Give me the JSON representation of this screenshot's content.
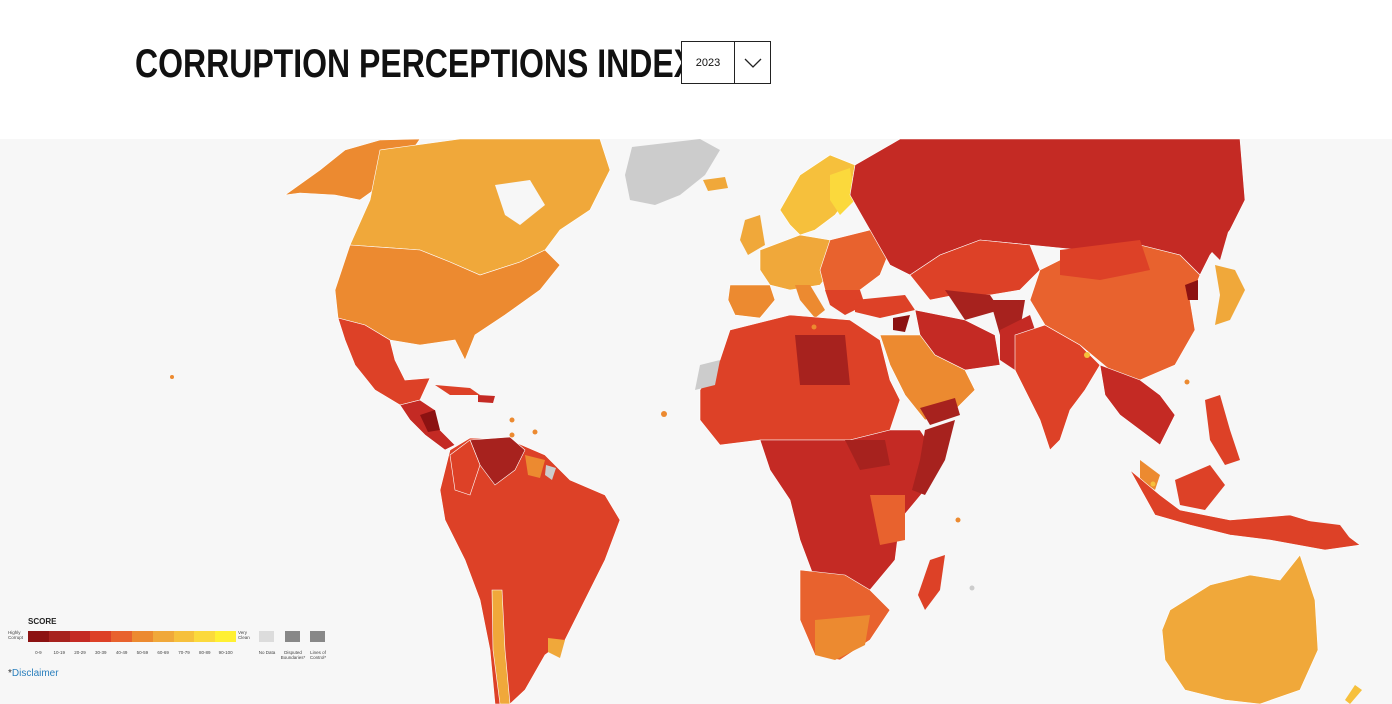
{
  "header": {
    "title": "CORRUPTION PERCEPTIONS INDEX"
  },
  "year_select": {
    "value": "2023",
    "icon": "chevron-down-icon"
  },
  "colors": {
    "ocean": "#f7f7f7",
    "no_data": "#cccccc",
    "s0": "#8c1212",
    "s10": "#a7221e",
    "s20": "#c42a24",
    "s30": "#dd4127",
    "s40": "#e8622e",
    "s50": "#ec8a30",
    "s60": "#f0a83a",
    "s70": "#f6c03c",
    "s80": "#fbd93c",
    "s90": "#fff032"
  },
  "legend": {
    "title": "SCORE",
    "low_label": "Highly Corrupt",
    "high_label": "Very Clean",
    "ranges": [
      "0-9",
      "10-19",
      "20-29",
      "30-39",
      "40-49",
      "50-59",
      "60-69",
      "70-79",
      "80-89",
      "90-100"
    ],
    "no_data_label": "No Data",
    "disputed_label": "Disputed Boundaries*",
    "lines_label": "Lines of Control*"
  },
  "disclaimer": {
    "asterisk": "*",
    "label": "Disclaimer"
  }
}
